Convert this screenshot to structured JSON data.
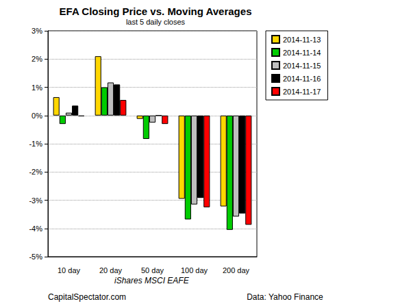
{
  "chart_data": {
    "type": "bar",
    "title": "EFA Closing Price vs. Moving Averages",
    "subtitle": "last 5 daily closes",
    "xlabel": "iShares MSCI EAFE",
    "annotations": [
      "CapitalSpectator.com",
      "Data: Yahoo Finance"
    ],
    "categories": [
      "10 day",
      "20 day",
      "50 day",
      "100 day",
      "200 day"
    ],
    "series": [
      {
        "name": "2014-11-13",
        "color": "#FFD700",
        "values": [
          0.65,
          2.1,
          -0.12,
          -2.95,
          -3.22
        ]
      },
      {
        "name": "2014-11-14",
        "color": "#00CC00",
        "values": [
          -0.3,
          1.0,
          -0.83,
          -3.68,
          -4.05
        ]
      },
      {
        "name": "2014-11-15",
        "color": "#BEBEBE",
        "values": [
          0.1,
          1.17,
          -0.25,
          -3.15,
          -3.58
        ]
      },
      {
        "name": "2014-11-16",
        "color": "#000000",
        "values": [
          0.35,
          1.1,
          0.0,
          -2.92,
          -3.47
        ]
      },
      {
        "name": "2014-11-17",
        "color": "#FF0000",
        "values": [
          -0.03,
          0.55,
          -0.3,
          -3.25,
          -3.87
        ]
      }
    ],
    "ylim": [
      -5,
      3
    ],
    "yticks": [
      {
        "value": -5,
        "label": "-5%"
      },
      {
        "value": -4,
        "label": "-4%"
      },
      {
        "value": -3,
        "label": "-3%"
      },
      {
        "value": -2,
        "label": "-2%"
      },
      {
        "value": -1,
        "label": "-1%"
      },
      {
        "value": 0,
        "label": "0%"
      },
      {
        "value": 1,
        "label": "1%"
      },
      {
        "value": 2,
        "label": "2%"
      },
      {
        "value": 3,
        "label": "3%"
      }
    ],
    "grid": true,
    "legend": "top-right"
  }
}
